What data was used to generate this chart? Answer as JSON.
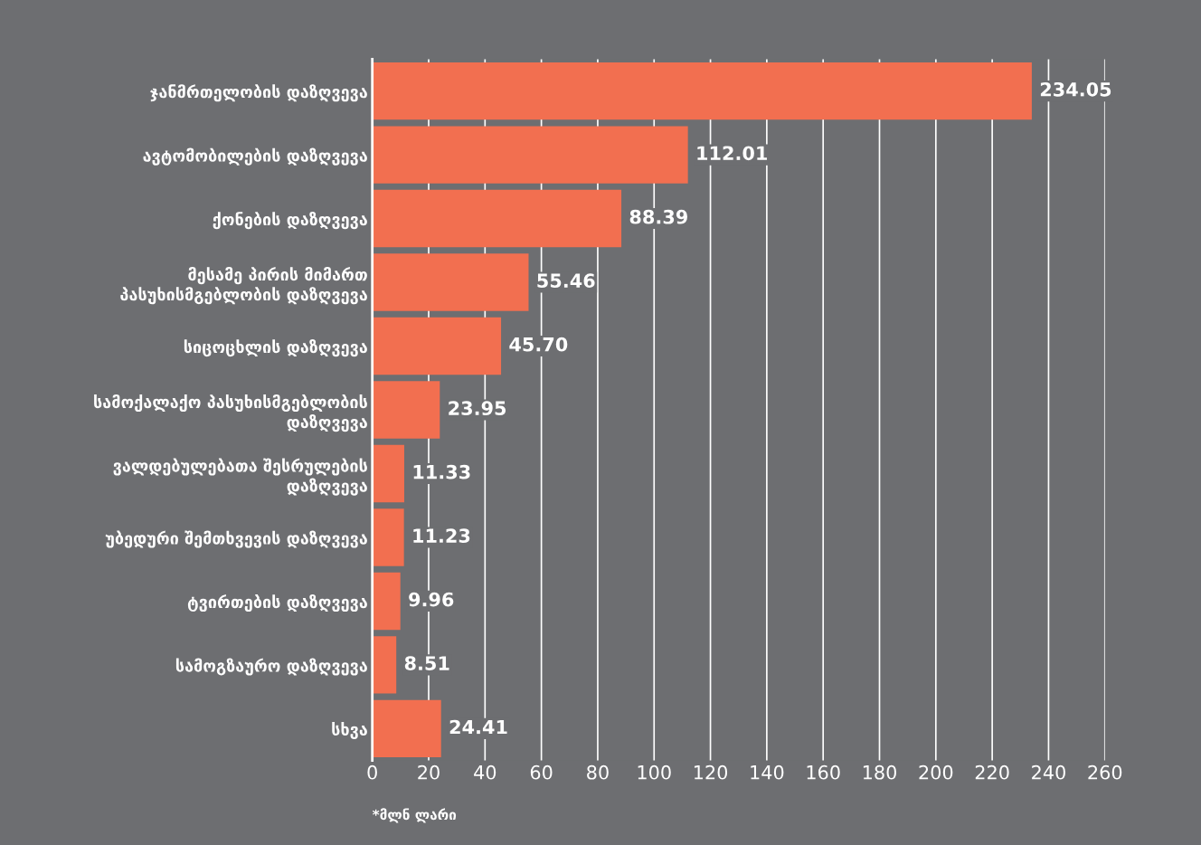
{
  "chart_data": {
    "type": "bar",
    "orientation": "horizontal",
    "categories": [
      "ჯანმრთელობის დაზღვევა",
      "ავტომობილების დაზღვევა",
      "ქონების დაზღვევა",
      "მესამე პირის მიმართ\nპასუხისმგებლობის დაზღვევა",
      "სიცოცხლის დაზღვევა",
      "სამოქალაქო პასუხისმგებლობის\nდაზღვევა",
      "ვალდებულებათა შესრულების\nდაზღვევა",
      "უბედური შემთხვევის დაზღვევა",
      "ტვირთების დაზღვევა",
      "სამოგზაურო დაზღვევა",
      "სხვა"
    ],
    "values": [
      234.05,
      112.01,
      88.39,
      55.46,
      45.7,
      23.95,
      11.33,
      11.23,
      9.96,
      8.51,
      24.41
    ],
    "value_labels": [
      "234.05",
      "112.01",
      "88.39",
      "55.46",
      "45.70",
      "23.95",
      "11.33",
      "11.23",
      "9.96",
      "8.51",
      "24.41"
    ],
    "color": "#f26f50",
    "xlim": [
      0,
      260
    ],
    "xticks": [
      0,
      20,
      40,
      60,
      80,
      100,
      120,
      140,
      160,
      180,
      200,
      220,
      240,
      260
    ],
    "grid": "x",
    "annotations": [
      "*მლნ ლარი"
    ]
  }
}
